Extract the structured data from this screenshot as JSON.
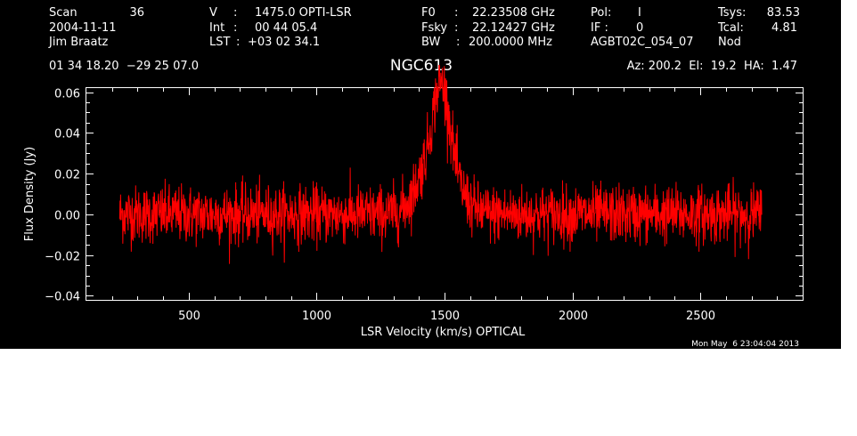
{
  "header": {
    "scan_label": "Scan",
    "scan_num": "36",
    "date": "2004-11-11",
    "observer": "Jim Braatz",
    "v_label": "V",
    "v_sep": ":",
    "v_value": "1475.0 OPTI-LSR",
    "int_label": "Int",
    "int_sep": ":",
    "int_value": "00 44 05.4",
    "lst_label": "LST",
    "lst_sep": ":",
    "lst_value": "+03 02 34.1",
    "f0_label": "F0",
    "f0_sep": ":",
    "f0_value": "22.23508 GHz",
    "fsky_label": "Fsky",
    "fsky_sep": ":",
    "fsky_value": "22.12427 GHz",
    "bw_label": "BW",
    "bw_sep": ":",
    "bw_value": "200.0000 MHz",
    "pol_label": "Pol:",
    "pol_value": "I",
    "if_label": "IF :",
    "if_value": "0",
    "project": "AGBT02C_054_07",
    "tsys_label": "Tsys:",
    "tsys_value": "83.53",
    "tcal_label": "Tcal:",
    "tcal_value": "4.81",
    "proc": "Nod",
    "coords": "01 34 18.20  −29 25 07.0",
    "source": "NGC613",
    "pointing": "Az: 200.2  El:  19.2  HA:  1.47",
    "timestamp": "Mon May  6 23:04:04 2013"
  },
  "colors": {
    "background": "#000000",
    "axes": "#ffffff",
    "series": "#ff0000"
  },
  "chart_data": {
    "type": "line",
    "title": "NGC613",
    "xlabel": "LSR Velocity (km/s) OPTICAL",
    "ylabel": "Flux Density (Jy)",
    "xlim": [
      100,
      2900
    ],
    "ylim": [
      -0.042,
      0.062
    ],
    "x_major_ticks": [
      500,
      1000,
      1500,
      2000,
      2500
    ],
    "x_tick_labels": [
      "500",
      "1000",
      "1500",
      "2000",
      "2500"
    ],
    "y_major_ticks": [
      -0.04,
      -0.02,
      0.0,
      0.02,
      0.04,
      0.06
    ],
    "y_tick_labels": [
      "−0.04",
      "−0.02",
      "0.00",
      "0.02",
      "0.04",
      "0.06"
    ],
    "grid": false,
    "series": [
      {
        "color": "#ff0000",
        "x_range": [
          230,
          2740
        ],
        "noise_rms_jy": 0.007,
        "baseline_jy": 0.0,
        "line_features": [
          {
            "center_kms": 1445,
            "peak_jy": 0.018,
            "width_kms": 55
          },
          {
            "center_kms": 1490,
            "peak_jy": 0.032,
            "width_kms": 30
          },
          {
            "center_kms": 1500,
            "peak_jy": 0.02,
            "width_kms": 60
          }
        ]
      }
    ]
  }
}
